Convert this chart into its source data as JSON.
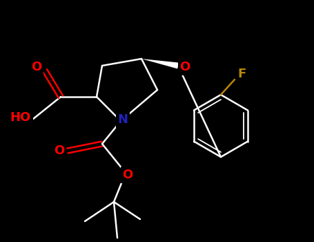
{
  "bg_color": "#000000",
  "bond_color": "#ffffff",
  "bond_width": 1.8,
  "atom_colors": {
    "O": "#ff0000",
    "N": "#2222bb",
    "F": "#b8860b",
    "C": "#ffffff"
  },
  "figsize": [
    4.55,
    3.5
  ],
  "dpi": 100,
  "xlim": [
    0,
    455
  ],
  "ylim": [
    0,
    350
  ]
}
